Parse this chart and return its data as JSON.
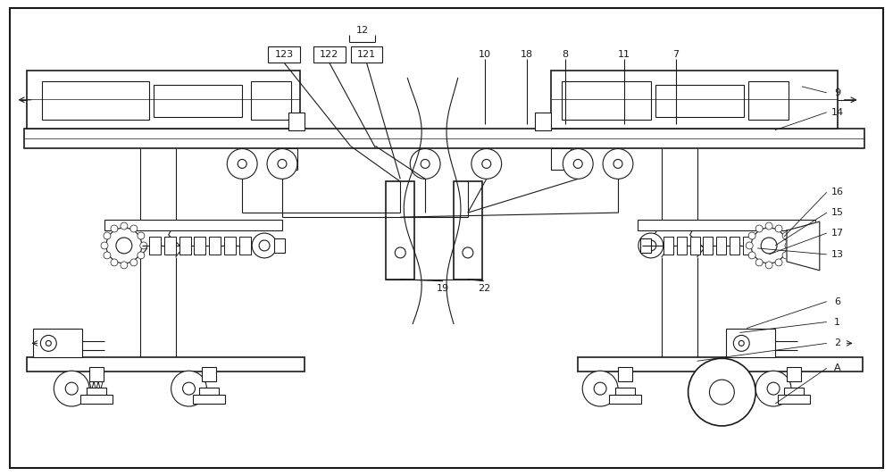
{
  "fig_width": 10.0,
  "fig_height": 5.33,
  "dpi": 100,
  "bg_color": "#ffffff",
  "line_color": "#1a1a1a",
  "lw": 0.8,
  "lw2": 1.2
}
